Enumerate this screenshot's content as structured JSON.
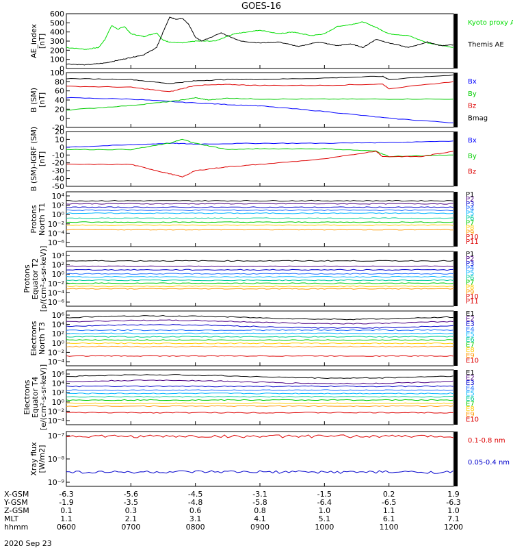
{
  "title": "GOES-16",
  "date": "2020 Sep 23",
  "chart_data": [
    {
      "type": "line",
      "ylabel": [
        "AE_index",
        "[nT]"
      ],
      "ylim": [
        0,
        600
      ],
      "yticks": [
        "0",
        "100",
        "200",
        "300",
        "400",
        "500",
        "600"
      ],
      "legend": [
        {
          "label": "Kyoto proxy AE",
          "color": "#00dd00"
        },
        {
          "label": "Themis AE",
          "color": "#000000"
        }
      ],
      "series": [
        {
          "name": "Kyoto proxy AE",
          "color": "#00dd00",
          "x": [
            0,
            0.3,
            0.5,
            0.6,
            0.7,
            0.8,
            0.9,
            1.0,
            1.2,
            1.4,
            1.5,
            1.6,
            1.8,
            2.0,
            2.3,
            2.6,
            2.8,
            3.0,
            3.3,
            3.5,
            3.8,
            4.0,
            4.2,
            4.4,
            4.6,
            4.8,
            5.0,
            5.3,
            5.6,
            6.0
          ],
          "y": [
            230,
            210,
            230,
            320,
            470,
            430,
            460,
            380,
            350,
            390,
            310,
            290,
            280,
            300,
            300,
            380,
            400,
            420,
            380,
            400,
            360,
            380,
            460,
            480,
            510,
            450,
            380,
            360,
            280,
            230
          ]
        },
        {
          "name": "Themis AE",
          "color": "#000000",
          "x": [
            0,
            0.3,
            0.6,
            0.8,
            1.0,
            1.2,
            1.4,
            1.5,
            1.6,
            1.7,
            1.8,
            1.9,
            2.0,
            2.1,
            2.4,
            2.7,
            3.0,
            3.3,
            3.6,
            3.9,
            4.2,
            4.4,
            4.6,
            4.8,
            5.0,
            5.3,
            5.6,
            5.8,
            6.0
          ],
          "y": [
            50,
            40,
            60,
            90,
            120,
            150,
            230,
            400,
            560,
            540,
            550,
            480,
            340,
            300,
            390,
            300,
            280,
            290,
            240,
            290,
            250,
            270,
            230,
            320,
            280,
            230,
            290,
            250,
            260
          ]
        }
      ]
    },
    {
      "type": "line",
      "ylabel": [
        "B (SM)",
        "[nT]"
      ],
      "ylim": [
        -20,
        100
      ],
      "yticks": [
        "-20",
        "0",
        "20",
        "40",
        "60",
        "80",
        "100"
      ],
      "legend": [
        {
          "label": "Bx",
          "color": "#0000ff"
        },
        {
          "label": "By",
          "color": "#00cc00"
        },
        {
          "label": "Bz",
          "color": "#dd0000"
        },
        {
          "label": "Bmag",
          "color": "#000000"
        }
      ],
      "series": [
        {
          "name": "Bx",
          "color": "#0000ff",
          "x": [
            0,
            1.0,
            1.8,
            2.5,
            3.0,
            4.0,
            5.0,
            6.0
          ],
          "y": [
            45,
            42,
            35,
            30,
            27,
            15,
            0,
            -10
          ]
        },
        {
          "name": "By",
          "color": "#00cc00",
          "x": [
            0,
            1.0,
            1.7,
            2.0,
            2.2,
            2.5,
            3.0,
            4.0,
            5.0,
            6.0
          ],
          "y": [
            18,
            28,
            38,
            45,
            40,
            44,
            42,
            42,
            42,
            42
          ]
        },
        {
          "name": "Bz",
          "color": "#dd0000",
          "x": [
            0,
            1.0,
            1.6,
            2.0,
            2.5,
            3.0,
            4.0,
            4.9,
            5.0,
            6.0
          ],
          "y": [
            70,
            68,
            58,
            72,
            74,
            72,
            72,
            75,
            65,
            80
          ]
        },
        {
          "name": "Bmag",
          "color": "#000000",
          "x": [
            0,
            1.0,
            1.6,
            2.0,
            2.5,
            3.0,
            4.0,
            4.9,
            5.0,
            6.0
          ],
          "y": [
            87,
            85,
            76,
            82,
            85,
            85,
            88,
            92,
            85,
            95
          ]
        }
      ]
    },
    {
      "type": "line",
      "ylabel": [
        "B (SM)-IGRF (SM)",
        "[nT]"
      ],
      "ylim": [
        -50,
        20
      ],
      "yticks": [
        "-50",
        "-40",
        "-30",
        "-20",
        "-10",
        "0",
        "10",
        "20"
      ],
      "legend": [
        {
          "label": "Bx",
          "color": "#0000ff"
        },
        {
          "label": "By",
          "color": "#00cc00"
        },
        {
          "label": "Bz",
          "color": "#dd0000"
        }
      ],
      "series": [
        {
          "name": "Bx",
          "color": "#0000ff",
          "x": [
            0,
            1.0,
            1.6,
            2.0,
            3.0,
            4.0,
            5.0,
            6.0
          ],
          "y": [
            0,
            3,
            5,
            4,
            5,
            5,
            6,
            8
          ]
        },
        {
          "name": "By",
          "color": "#00cc00",
          "x": [
            0,
            1.0,
            1.6,
            1.8,
            2.0,
            2.5,
            3.0,
            4.0,
            4.8,
            5.0,
            6.0
          ],
          "y": [
            -3,
            -3,
            5,
            10,
            5,
            -3,
            -2,
            -2,
            -5,
            -12,
            -10
          ]
        },
        {
          "name": "Bz",
          "color": "#dd0000",
          "x": [
            0,
            1.0,
            1.5,
            1.8,
            2.0,
            2.5,
            3.0,
            4.0,
            4.8,
            4.9,
            5.5,
            6.0
          ],
          "y": [
            -22,
            -22,
            -32,
            -38,
            -30,
            -25,
            -22,
            -15,
            -5,
            -12,
            -12,
            -5
          ]
        }
      ]
    },
    {
      "type": "line",
      "ylabel": [
        "Protons",
        "North T1"
      ],
      "yscale": "log",
      "ylim": [
        -7,
        4
      ],
      "yticks": [
        "10⁴",
        "10²",
        "10⁰",
        "10⁻²",
        "10⁻⁴",
        "10⁻⁶"
      ],
      "legend": [
        "P1",
        "P2",
        "P3",
        "P4",
        "P5",
        "P6",
        "P7",
        "P8",
        "P9",
        "P10",
        "P11"
      ],
      "series": [
        {
          "name": "P1",
          "color": "#000000",
          "y": 2.2
        },
        {
          "name": "P2",
          "color": "#4b0082",
          "y": 1.6
        },
        {
          "name": "P3",
          "color": "#0000cc",
          "y": 0.9
        },
        {
          "name": "P4",
          "color": "#1e6fff",
          "y": 0.3
        },
        {
          "name": "P5",
          "color": "#00b4ff",
          "y": -0.3
        },
        {
          "name": "P6",
          "color": "#00cc99",
          "y": -1.3
        },
        {
          "name": "P7",
          "color": "#00cc00",
          "y": -2.1
        },
        {
          "name": "P8",
          "color": "#ffcc00",
          "y": -2.7
        },
        {
          "name": "P9",
          "color": "#ff9900",
          "y": -3.6
        }
      ]
    },
    {
      "type": "line",
      "ylabel": [
        "Protons",
        "Equator T2",
        "[p/(cm²-s-sr-keV)]"
      ],
      "yscale": "log",
      "ylim": [
        -7,
        4
      ],
      "yticks": [
        "10⁴",
        "10²",
        "10⁰",
        "10⁻²",
        "10⁻⁴",
        "10⁻⁶"
      ],
      "legend": [
        "P1",
        "P2",
        "P3",
        "P4",
        "P5",
        "P6",
        "P7",
        "P8",
        "P9",
        "P10",
        "P11"
      ],
      "series": [
        {
          "name": "P1",
          "color": "#000000",
          "y": 2.1
        },
        {
          "name": "P2",
          "color": "#4b0082",
          "y": 1.0
        },
        {
          "name": "P3",
          "color": "#0000cc",
          "y": 0.3
        },
        {
          "name": "P4",
          "color": "#1e6fff",
          "y": -0.5
        },
        {
          "name": "P5",
          "color": "#00b4ff",
          "y": -1.1
        },
        {
          "name": "P6",
          "color": "#00cc99",
          "y": -1.8
        },
        {
          "name": "P7",
          "color": "#00cc00",
          "y": -2.4
        },
        {
          "name": "P8",
          "color": "#ffcc00",
          "y": -3.0
        },
        {
          "name": "P9",
          "color": "#ff9900",
          "y": -3.5
        }
      ]
    },
    {
      "type": "line",
      "ylabel": [
        "Electrons",
        "North T3"
      ],
      "yscale": "log",
      "ylim": [
        -4,
        6
      ],
      "yticks": [
        "10⁶",
        "10⁴",
        "10²",
        "10⁰",
        "10⁻²",
        "10⁻⁴"
      ],
      "legend": [
        "E1",
        "E2",
        "E3",
        "E4",
        "E5",
        "E6",
        "E7",
        "E8",
        "E9",
        "E10"
      ],
      "series": [
        {
          "name": "E1",
          "color": "#000000",
          "y": 4.8
        },
        {
          "name": "E2",
          "color": "#4b0082",
          "y": 4.0
        },
        {
          "name": "E3",
          "color": "#0000cc",
          "y": 3.2
        },
        {
          "name": "E4",
          "color": "#1e6fff",
          "y": 2.5
        },
        {
          "name": "E5",
          "color": "#00b4ff",
          "y": 1.9
        },
        {
          "name": "E6",
          "color": "#00cc99",
          "y": 1.3
        },
        {
          "name": "E7",
          "color": "#00cc00",
          "y": 0.7
        },
        {
          "name": "E8",
          "color": "#ffcc00",
          "y": 0.1
        },
        {
          "name": "E9",
          "color": "#ff9900",
          "y": -0.5
        },
        {
          "name": "E10",
          "color": "#dd0000",
          "y": -2.2
        }
      ]
    },
    {
      "type": "line",
      "ylabel": [
        "Electrons",
        "Equator T4",
        "[e/(cm²-s-sr-keV)]"
      ],
      "yscale": "log",
      "ylim": [
        -4,
        6
      ],
      "yticks": [
        "10⁶",
        "10⁴",
        "10²",
        "10⁰",
        "10⁻²",
        "10⁻⁴"
      ],
      "legend": [
        "E1",
        "E2",
        "E3",
        "E4",
        "E5",
        "E6",
        "E7",
        "E8",
        "E9",
        "E10"
      ],
      "series": [
        {
          "name": "E1",
          "color": "#000000",
          "y": 4.8
        },
        {
          "name": "E2",
          "color": "#4b0082",
          "y": 3.8
        },
        {
          "name": "E3",
          "color": "#0000cc",
          "y": 3.0
        },
        {
          "name": "E4",
          "color": "#1e6fff",
          "y": 2.3
        },
        {
          "name": "E5",
          "color": "#00b4ff",
          "y": 1.7
        },
        {
          "name": "E6",
          "color": "#00cc99",
          "y": 1.1
        },
        {
          "name": "E7",
          "color": "#00cc00",
          "y": 0.5
        },
        {
          "name": "E8",
          "color": "#ffcc00",
          "y": -0.1
        },
        {
          "name": "E9",
          "color": "#ff9900",
          "y": -0.6
        },
        {
          "name": "E10",
          "color": "#dd0000",
          "y": -1.8
        }
      ]
    },
    {
      "type": "line",
      "ylabel": [
        "Xray flux",
        "[W/m2]"
      ],
      "yscale": "log",
      "ylim": [
        -9.3,
        -7
      ],
      "yticks": [
        "10⁻⁷",
        "10⁻⁸",
        "10⁻⁹"
      ],
      "legend": [
        {
          "label": "0.1-0.8 nm",
          "color": "#dd0000"
        },
        {
          "label": "0.05-0.4 nm",
          "color": "#0000cc"
        }
      ],
      "series": [
        {
          "name": "0.1-0.8 nm",
          "color": "#dd0000",
          "y": -7.2
        },
        {
          "name": "0.05-0.4 nm",
          "color": "#0000cc",
          "y": -8.7
        }
      ]
    }
  ],
  "footer": {
    "rows": [
      {
        "label": "X-GSM",
        "values": [
          "-6.3",
          "-5.6",
          "-4.5",
          "-3.1",
          "-1.5",
          "0.2",
          "1.9"
        ]
      },
      {
        "label": "Y-GSM",
        "values": [
          "-1.9",
          "-3.5",
          "-4.8",
          "-5.8",
          "-6.4",
          "-6.5",
          "-6.3"
        ]
      },
      {
        "label": "Z-GSM",
        "values": [
          "0.1",
          "0.3",
          "0.6",
          "0.8",
          "1.0",
          "1.1",
          "1.0"
        ]
      },
      {
        "label": "MLT",
        "values": [
          "1.1",
          "2.1",
          "3.1",
          "4.1",
          "5.1",
          "6.1",
          "7.1"
        ]
      },
      {
        "label": "hhmm",
        "values": [
          "0600",
          "0700",
          "0800",
          "0900",
          "1000",
          "1100",
          "1200"
        ]
      }
    ]
  }
}
